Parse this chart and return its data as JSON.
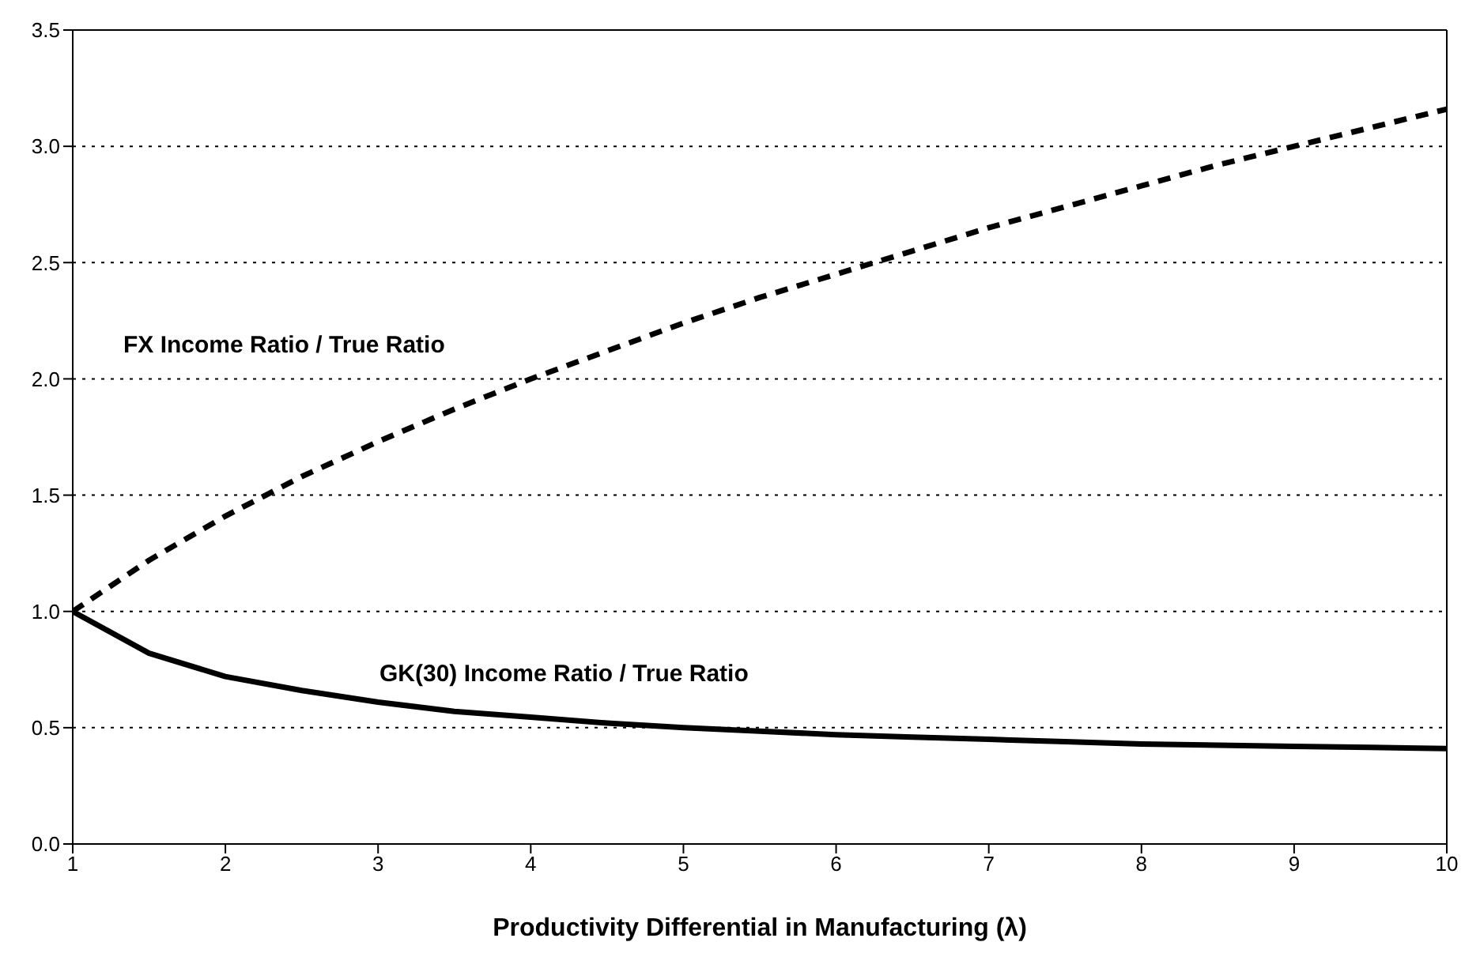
{
  "chart_data": {
    "type": "line",
    "xlabel": "Productivity Differential in Manufacturing (λ)",
    "x": [
      1,
      1.5,
      2,
      2.5,
      3,
      3.5,
      4,
      4.5,
      5,
      5.5,
      6,
      6.5,
      7,
      7.5,
      8,
      8.5,
      9,
      9.5,
      10
    ],
    "series": [
      {
        "name": "FX Income Ratio / True Ratio",
        "color": "#000000",
        "line_style": "dashed",
        "values": [
          1.0,
          1.22,
          1.41,
          1.58,
          1.73,
          1.87,
          2.0,
          2.12,
          2.24,
          2.35,
          2.45,
          2.55,
          2.65,
          2.74,
          2.83,
          2.92,
          3.0,
          3.08,
          3.16
        ]
      },
      {
        "name": "GK(30) Income Ratio / True Ratio",
        "color": "#000000",
        "line_style": "solid",
        "values": [
          1.0,
          0.82,
          0.72,
          0.66,
          0.61,
          0.57,
          0.545,
          0.52,
          0.5,
          0.485,
          0.47,
          0.46,
          0.45,
          0.44,
          0.43,
          0.425,
          0.42,
          0.415,
          0.41
        ]
      }
    ],
    "xlim": [
      1,
      10
    ],
    "xticks": [
      1,
      2,
      3,
      4,
      5,
      6,
      7,
      8,
      9,
      10
    ],
    "ylim": [
      0,
      3.5
    ],
    "yticks": [
      {
        "value": 0,
        "label": "0.0"
      },
      0.5,
      {
        "value": 1,
        "label": "1.0"
      },
      1.5,
      {
        "value": 2,
        "label": "2.0"
      },
      2.5,
      {
        "value": 3,
        "label": "3.0"
      },
      3.5
    ],
    "grid": "y",
    "legend": false,
    "marker": "none"
  }
}
